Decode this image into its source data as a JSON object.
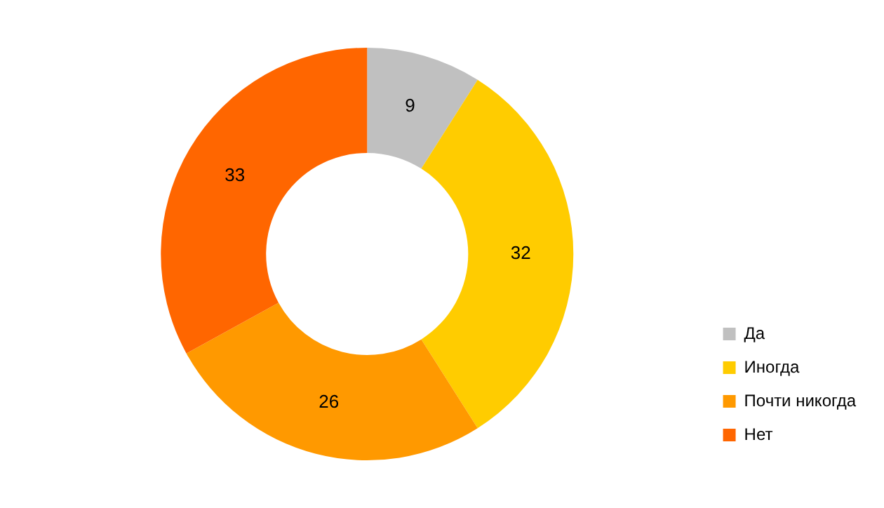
{
  "chart_data": {
    "type": "donut",
    "categories": [
      "Да",
      "Иногда",
      "Почти никогда",
      "Нет"
    ],
    "values": [
      9,
      32,
      26,
      33
    ],
    "colors": [
      "#c0c0c0",
      "#ffcc00",
      "#ff9900",
      "#ff6600"
    ],
    "data_labels": true,
    "legend": "bottom right"
  }
}
